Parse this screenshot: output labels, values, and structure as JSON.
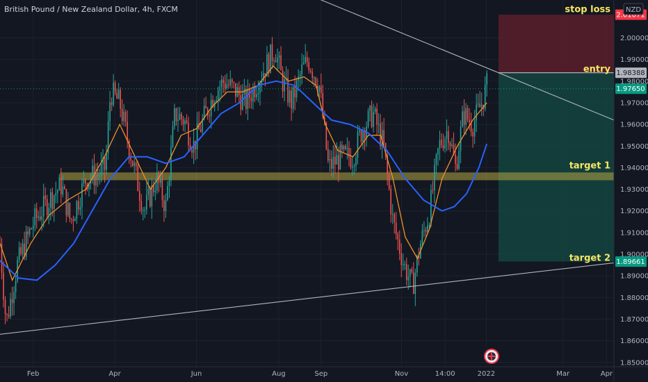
{
  "chart_data": {
    "type": "candlestick",
    "title": "British Pound / New Zealand Dollar, 4h, FXCM",
    "currency": "NZD",
    "y_axis": {
      "range": [
        1.848,
        2.0175
      ],
      "ticks": [
        "2.00000",
        "1.99000",
        "1.98000",
        "1.97000",
        "1.96000",
        "1.95000",
        "1.94000",
        "1.93000",
        "1.92000",
        "1.91000",
        "1.90000",
        "1.89000",
        "1.88000",
        "1.87000",
        "1.86000",
        "1.85000"
      ]
    },
    "x_axis": {
      "ticks": [
        {
          "label": "Feb",
          "pos": 0.054
        },
        {
          "label": "Apr",
          "pos": 0.187
        },
        {
          "label": "Jun",
          "pos": 0.32
        },
        {
          "label": "Aug",
          "pos": 0.454
        },
        {
          "label": "Sep",
          "pos": 0.523
        },
        {
          "label": "Nov",
          "pos": 0.654
        },
        {
          "label": "14:00",
          "pos": 0.725
        },
        {
          "label": "2022",
          "pos": 0.792
        },
        {
          "label": "Mar",
          "pos": 0.917
        },
        {
          "label": "Apr",
          "pos": 0.988
        }
      ]
    },
    "price_path": [
      [
        0.0,
        1.905
      ],
      [
        0.01,
        1.868
      ],
      [
        0.028,
        1.895
      ],
      [
        0.055,
        1.915
      ],
      [
        0.08,
        1.925
      ],
      [
        0.1,
        1.932
      ],
      [
        0.115,
        1.915
      ],
      [
        0.14,
        1.935
      ],
      [
        0.16,
        1.937
      ],
      [
        0.172,
        1.94
      ],
      [
        0.18,
        1.975
      ],
      [
        0.195,
        1.97
      ],
      [
        0.21,
        1.95
      ],
      [
        0.235,
        1.92
      ],
      [
        0.255,
        1.935
      ],
      [
        0.27,
        1.922
      ],
      [
        0.285,
        1.965
      ],
      [
        0.3,
        1.962
      ],
      [
        0.315,
        1.95
      ],
      [
        0.335,
        1.965
      ],
      [
        0.35,
        1.975
      ],
      [
        0.365,
        1.98
      ],
      [
        0.385,
        1.975
      ],
      [
        0.4,
        1.97
      ],
      [
        0.42,
        1.98
      ],
      [
        0.448,
        1.995
      ],
      [
        0.46,
        1.98
      ],
      [
        0.475,
        1.97
      ],
      [
        0.492,
        1.985
      ],
      [
        0.502,
        1.99
      ],
      [
        0.52,
        1.978
      ],
      [
        0.535,
        1.94
      ],
      [
        0.555,
        1.945
      ],
      [
        0.575,
        1.945
      ],
      [
        0.59,
        1.958
      ],
      [
        0.608,
        1.965
      ],
      [
        0.625,
        1.95
      ],
      [
        0.64,
        1.915
      ],
      [
        0.658,
        1.895
      ],
      [
        0.672,
        1.885
      ],
      [
        0.685,
        1.905
      ],
      [
        0.7,
        1.92
      ],
      [
        0.715,
        1.95
      ],
      [
        0.73,
        1.958
      ],
      [
        0.742,
        1.94
      ],
      [
        0.755,
        1.965
      ],
      [
        0.77,
        1.96
      ],
      [
        0.785,
        1.97
      ],
      [
        0.793,
        1.978
      ]
    ],
    "series": [
      {
        "name": "MA fast",
        "color": "#f0922b",
        "points": [
          [
            0.0,
            1.905
          ],
          [
            0.02,
            1.888
          ],
          [
            0.05,
            1.905
          ],
          [
            0.08,
            1.918
          ],
          [
            0.11,
            1.925
          ],
          [
            0.14,
            1.93
          ],
          [
            0.17,
            1.945
          ],
          [
            0.195,
            1.96
          ],
          [
            0.22,
            1.945
          ],
          [
            0.245,
            1.93
          ],
          [
            0.27,
            1.94
          ],
          [
            0.295,
            1.955
          ],
          [
            0.32,
            1.958
          ],
          [
            0.345,
            1.968
          ],
          [
            0.37,
            1.975
          ],
          [
            0.395,
            1.975
          ],
          [
            0.42,
            1.978
          ],
          [
            0.445,
            1.987
          ],
          [
            0.47,
            1.98
          ],
          [
            0.495,
            1.982
          ],
          [
            0.515,
            1.978
          ],
          [
            0.53,
            1.96
          ],
          [
            0.55,
            1.948
          ],
          [
            0.575,
            1.945
          ],
          [
            0.6,
            1.955
          ],
          [
            0.62,
            1.955
          ],
          [
            0.64,
            1.935
          ],
          [
            0.66,
            1.908
          ],
          [
            0.68,
            1.898
          ],
          [
            0.7,
            1.912
          ],
          [
            0.72,
            1.935
          ],
          [
            0.745,
            1.95
          ],
          [
            0.77,
            1.962
          ],
          [
            0.793,
            1.97
          ]
        ]
      },
      {
        "name": "MA slow",
        "color": "#2962ff",
        "points": [
          [
            0.0,
            1.897
          ],
          [
            0.03,
            1.889
          ],
          [
            0.06,
            1.888
          ],
          [
            0.09,
            1.895
          ],
          [
            0.12,
            1.905
          ],
          [
            0.15,
            1.92
          ],
          [
            0.18,
            1.935
          ],
          [
            0.21,
            1.945
          ],
          [
            0.24,
            1.945
          ],
          [
            0.27,
            1.942
          ],
          [
            0.3,
            1.945
          ],
          [
            0.33,
            1.955
          ],
          [
            0.36,
            1.965
          ],
          [
            0.39,
            1.97
          ],
          [
            0.42,
            1.978
          ],
          [
            0.45,
            1.98
          ],
          [
            0.48,
            1.978
          ],
          [
            0.51,
            1.97
          ],
          [
            0.54,
            1.962
          ],
          [
            0.57,
            1.96
          ],
          [
            0.6,
            1.956
          ],
          [
            0.63,
            1.948
          ],
          [
            0.66,
            1.935
          ],
          [
            0.69,
            1.925
          ],
          [
            0.72,
            1.92
          ],
          [
            0.74,
            1.922
          ],
          [
            0.76,
            1.928
          ],
          [
            0.78,
            1.94
          ],
          [
            0.793,
            1.951
          ]
        ]
      }
    ],
    "trendlines": [
      {
        "name": "upper resistance",
        "from": [
          0.33,
          2.04
        ],
        "to": [
          1.0,
          1.962
        ]
      },
      {
        "name": "lower support",
        "from": [
          0.0,
          1.863
        ],
        "to": [
          1.0,
          1.896
        ]
      }
    ],
    "zones": [
      {
        "name": "support band",
        "y_low": 1.9342,
        "y_high": 1.9378,
        "x_from": 0.098,
        "x_to": 1.0,
        "color": "#b5a642"
      }
    ],
    "position": {
      "x_from": 0.812,
      "x_to": 1.0,
      "stop_loss": 2.01071,
      "entry": 1.98388,
      "target": 1.89661
    },
    "annotations": [
      {
        "text": "stop loss",
        "value": 2.0132
      },
      {
        "text": "entry",
        "value": 1.9855
      },
      {
        "text": "target 1",
        "value": 1.941
      },
      {
        "text": "target 2",
        "value": 1.8982
      }
    ],
    "price_tags": [
      {
        "label": "2.01071",
        "value": 2.01071,
        "bg": "#f23645",
        "fg": "#ffffff"
      },
      {
        "label": "1.98388",
        "value": 1.98388,
        "bg": "#b2b5be",
        "fg": "#131722"
      },
      {
        "label": "1.97650",
        "value": 1.9765,
        "bg": "#089981",
        "fg": "#ffffff"
      },
      {
        "label": "1.89661",
        "value": 1.89661,
        "bg": "#089981",
        "fg": "#ffffff"
      }
    ],
    "last_price": 1.9765,
    "colors": {
      "background": "#131722",
      "up": "#26a69a",
      "down": "#ef5350",
      "grid": "#1e222d",
      "text": "#b2b5be",
      "annotation": "#f5e663",
      "risk_zone": "#5a1f2a",
      "reward_zone": "#14443f",
      "trendline": "#b2b5be"
    }
  }
}
